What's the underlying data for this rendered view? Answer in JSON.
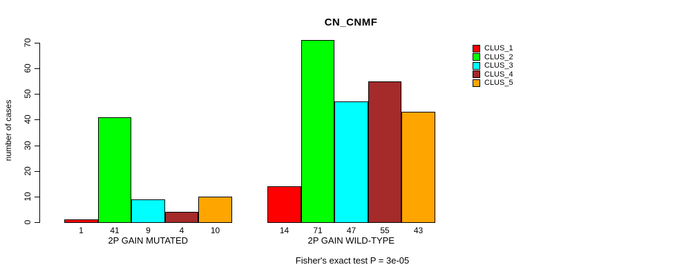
{
  "title": "CN_CNMF",
  "footer": "Fisher's exact test P = 3e-05",
  "colors": {
    "clus_1": "#FF0000",
    "clus_2": "#00FF00",
    "clus_3": "#00FFFF",
    "clus_4": "#A52A2A",
    "clus_5": "#FFA500",
    "axis": "#000000",
    "background": "#FFFFFF"
  },
  "chart_data": {
    "type": "bar",
    "title": "CN_CNMF",
    "xlabel": "",
    "ylabel": "number of cases",
    "ylim": [
      0,
      70
    ],
    "yticks": [
      0,
      10,
      20,
      30,
      40,
      50,
      60,
      70
    ],
    "grid": false,
    "legend_position": "right",
    "bar_value_labels_shown": true,
    "categories": [
      "2P GAIN MUTATED",
      "2P GAIN WILD-TYPE"
    ],
    "series": [
      {
        "name": "CLUS_1",
        "color": "#FF0000",
        "values": [
          1,
          14
        ]
      },
      {
        "name": "CLUS_2",
        "color": "#00FF00",
        "values": [
          41,
          71
        ]
      },
      {
        "name": "CLUS_3",
        "color": "#00FFFF",
        "values": [
          9,
          47
        ]
      },
      {
        "name": "CLUS_4",
        "color": "#A52A2A",
        "values": [
          4,
          55
        ]
      },
      {
        "name": "CLUS_5",
        "color": "#FFA500",
        "values": [
          10,
          43
        ]
      }
    ],
    "annotations": [
      "Fisher's exact test P = 3e-05"
    ]
  }
}
